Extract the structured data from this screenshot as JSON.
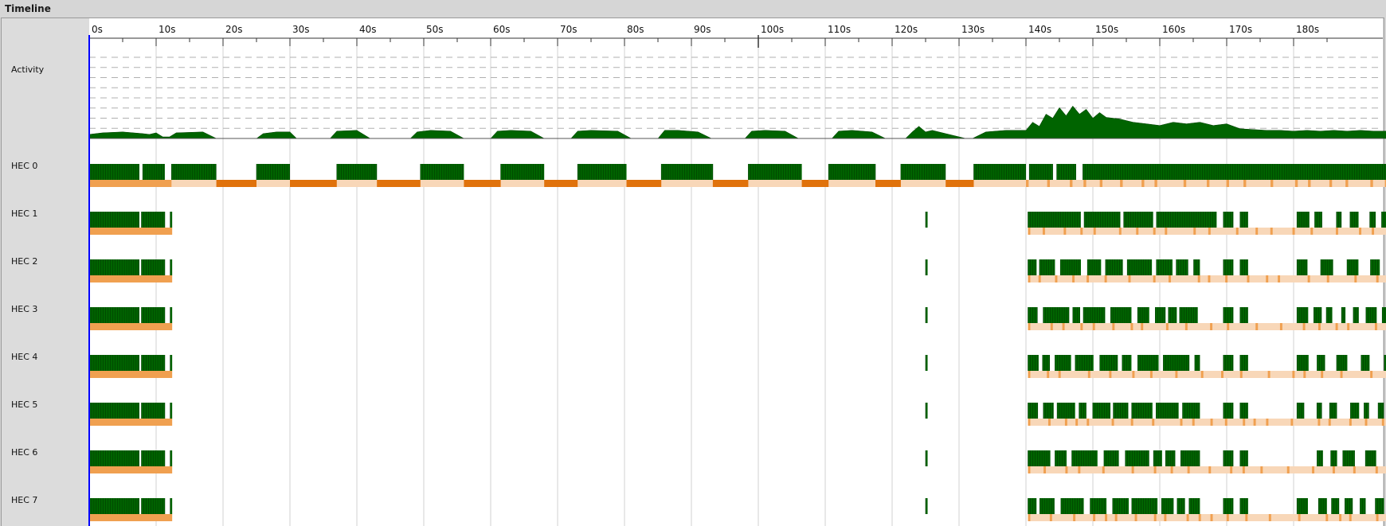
{
  "window": {
    "title": "Timeline"
  },
  "ruler": {
    "ticks": [
      "0s",
      "10s",
      "20s",
      "30s",
      "40s",
      "50s",
      "60s",
      "70s",
      "80s",
      "90s",
      "100s",
      "110s",
      "120s",
      "130s",
      "140s",
      "150s",
      "160s",
      "170s",
      "180s"
    ]
  },
  "rows": {
    "activity": "Activity",
    "hecs": [
      "HEC 0",
      "HEC 1",
      "HEC 2",
      "HEC 3",
      "HEC 4",
      "HEC 5",
      "HEC 6",
      "HEC 7"
    ]
  },
  "colors": {
    "run": "#006400",
    "run_dark": "#003c00",
    "gc_busy": "#e0720c",
    "gc_light": "#f8d7b8",
    "gc_mid": "#f0a050",
    "cursor": "#0000ff",
    "grid": "#d0d0d0"
  },
  "chart_data": {
    "type": "area",
    "x_unit": "s",
    "x_range": [
      0,
      194
    ],
    "series": [
      {
        "kind": "activity",
        "x": [
          0,
          2,
          5,
          8,
          9,
          10,
          11,
          12,
          13,
          17,
          19,
          25,
          26,
          28,
          30,
          31,
          36,
          37,
          40,
          42,
          48,
          49,
          51,
          54,
          56,
          60,
          61,
          63,
          66,
          68,
          72,
          73,
          75,
          79,
          81,
          85,
          86,
          88,
          91,
          93,
          98,
          99,
          101,
          104,
          106,
          111,
          112,
          114,
          117,
          119,
          122,
          123,
          124,
          125,
          126,
          128,
          131,
          132,
          134,
          137,
          140,
          141,
          142,
          143,
          144,
          145,
          146,
          147,
          148,
          149,
          150,
          151,
          152,
          154,
          156,
          158,
          160,
          162,
          164,
          166,
          168,
          170,
          172,
          174,
          176,
          178,
          180,
          182,
          184,
          186,
          188,
          190,
          192,
          194
        ],
        "y": [
          0.05,
          0.07,
          0.08,
          0.06,
          0.05,
          0.07,
          0.02,
          0.02,
          0.07,
          0.08,
          0.0,
          0.0,
          0.06,
          0.08,
          0.08,
          0.0,
          0.0,
          0.09,
          0.1,
          0.0,
          0.0,
          0.08,
          0.1,
          0.09,
          0.0,
          0.0,
          0.09,
          0.1,
          0.09,
          0.0,
          0.0,
          0.09,
          0.1,
          0.09,
          0.0,
          0.0,
          0.1,
          0.1,
          0.08,
          0.0,
          0.0,
          0.09,
          0.1,
          0.09,
          0.0,
          0.0,
          0.09,
          0.1,
          0.08,
          0.0,
          0.0,
          0.08,
          0.15,
          0.08,
          0.1,
          0.06,
          0.0,
          0.0,
          0.08,
          0.1,
          0.1,
          0.2,
          0.15,
          0.3,
          0.25,
          0.38,
          0.28,
          0.4,
          0.3,
          0.36,
          0.25,
          0.32,
          0.26,
          0.24,
          0.2,
          0.18,
          0.16,
          0.2,
          0.18,
          0.2,
          0.16,
          0.18,
          0.12,
          0.11,
          0.1,
          0.1,
          0.09,
          0.1,
          0.09,
          0.1,
          0.09,
          0.1,
          0.09,
          0.09
        ]
      }
    ]
  }
}
